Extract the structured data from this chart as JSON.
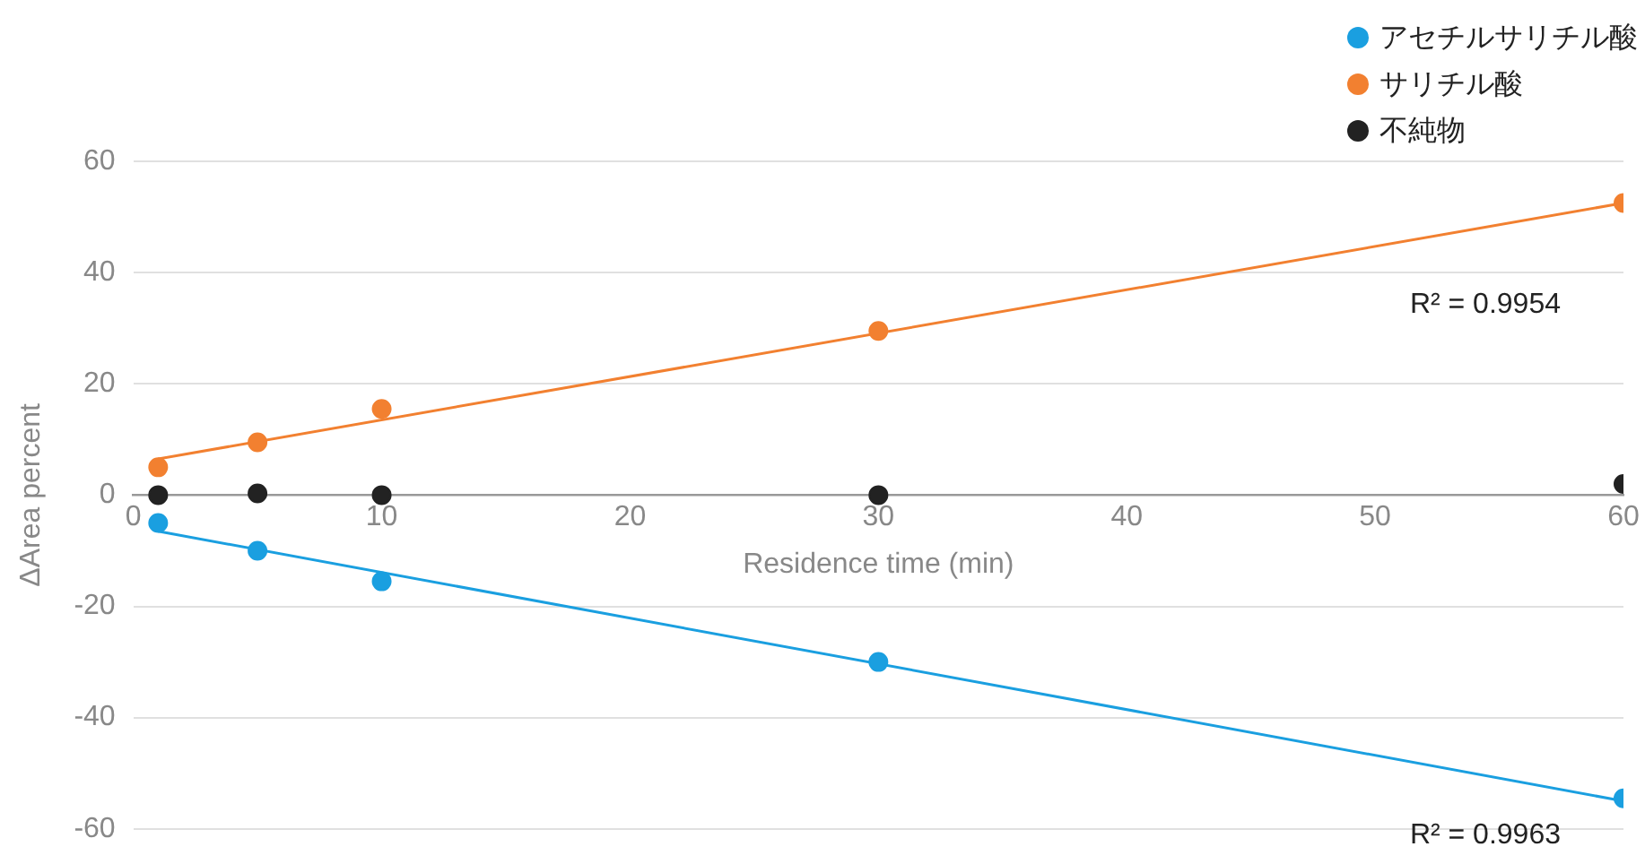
{
  "chart_data": {
    "type": "scatter",
    "xlabel": "Residence time (min)",
    "ylabel": "ΔArea percent",
    "xlim": [
      0,
      60
    ],
    "xticks": [
      0,
      10,
      20,
      30,
      40,
      50,
      60
    ],
    "ylim": [
      -60,
      60
    ],
    "yticks": [
      -60,
      -40,
      -20,
      0,
      20,
      40,
      60
    ],
    "grid": "y",
    "legend": "top right",
    "marker": "circle",
    "series": [
      {
        "name": "アセチルサリチル酸",
        "color": "#1a9fe0",
        "x": [
          1,
          5,
          10,
          30,
          60
        ],
        "values": [
          -5,
          -10,
          -15.5,
          -30,
          -54.5
        ]
      },
      {
        "name": "サリチル酸",
        "color": "#f28030",
        "x": [
          1,
          5,
          10,
          30,
          60
        ],
        "values": [
          5,
          9.5,
          15.5,
          29.5,
          52.5
        ]
      },
      {
        "name": "不純物",
        "color": "#222222",
        "x": [
          1,
          5,
          10,
          30,
          60
        ],
        "values": [
          0,
          0.3,
          0,
          0,
          2
        ]
      },
      {
        "type": "line",
        "marker": "none",
        "color": "#f28030",
        "x": [
          1,
          60
        ],
        "values": [
          6.5,
          52.5
        ]
      },
      {
        "type": "line",
        "marker": "none",
        "color": "#1a9fe0",
        "x": [
          1,
          60
        ],
        "values": [
          -6.5,
          -55
        ]
      }
    ],
    "annotations": [
      "R² = 0.9954",
      "R² = 0.9963"
    ]
  }
}
